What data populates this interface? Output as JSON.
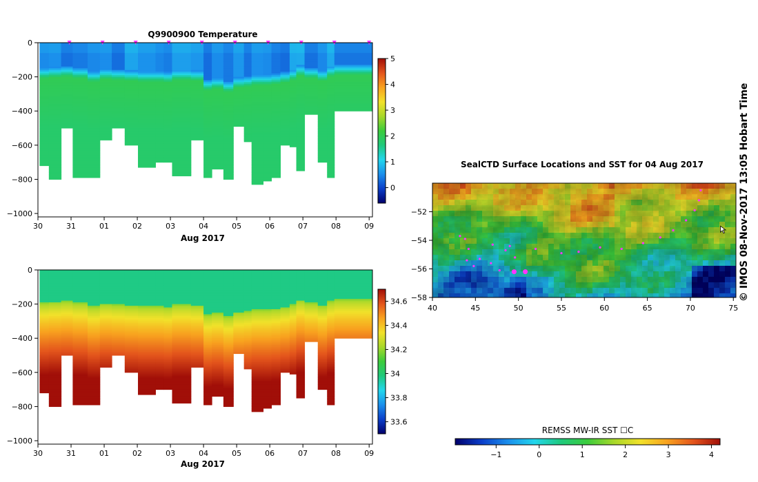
{
  "figure": {
    "side_label": "© IMOS 08-Nov-2017 13:05 Hobart Time"
  },
  "chart_data": [
    {
      "type": "heatmap",
      "title": "Q9900900  Temperature",
      "xlabel": "Aug 2017",
      "ylabel": "",
      "x_tick_labels": [
        "30",
        "31",
        "01",
        "02",
        "03",
        "04",
        "05",
        "06",
        "07",
        "08",
        "09"
      ],
      "x_range_days": [
        30.0,
        40.1
      ],
      "ylim": [
        -1020,
        0
      ],
      "y_ticks": [
        0,
        -200,
        -400,
        -600,
        -800,
        -1000
      ],
      "y_tick_labels": [
        "0",
        "−200",
        "−400",
        "−600",
        "−800",
        "−1000"
      ],
      "colorbar": {
        "range": [
          -0.6,
          5
        ],
        "ticks": [
          0,
          1,
          2,
          3,
          4,
          5
        ],
        "tick_labels": [
          "0",
          "1",
          "2",
          "3",
          "4",
          "5"
        ],
        "colors": [
          "#00006b",
          "#0b3ec9",
          "#1b8fec",
          "#22d6ec",
          "#1fc97c",
          "#3ccc3c",
          "#a8d82a",
          "#f2e12a",
          "#f8a21f",
          "#e3541c",
          "#a10f08"
        ]
      },
      "profile_markers_day": [
        30.95,
        31.95,
        32.95,
        33.95,
        34.95,
        35.95,
        36.95,
        37.95,
        38.95,
        40.0
      ],
      "profile_days": [
        30.05,
        30.33,
        30.7,
        31.05,
        31.5,
        31.87,
        32.23,
        32.62,
        33.02,
        33.55,
        33.8,
        34.05,
        34.62,
        35.0,
        35.25,
        35.6,
        35.9,
        36.22,
        36.45,
        36.8,
        37.05,
        37.32,
        37.6,
        37.8,
        38.05,
        38.45,
        38.73,
        38.95
      ],
      "profile_depths_m": [
        720,
        800,
        500,
        785,
        785,
        570,
        500,
        600,
        725,
        700,
        700,
        780,
        565,
        785,
        735,
        800,
        490,
        575,
        825,
        810,
        785,
        600,
        610,
        750,
        420,
        700,
        785,
        400
      ],
      "mixed_layer_depth_m": [
        190,
        185,
        180,
        190,
        210,
        195,
        200,
        205,
        210,
        210,
        215,
        200,
        205,
        260,
        250,
        270,
        245,
        240,
        230,
        230,
        225,
        215,
        200,
        175,
        190,
        205,
        180,
        170
      ],
      "layers_mid_depth_m": [
        -100,
        -250,
        -500,
        -700
      ],
      "layers_value": [
        0.5,
        2.0,
        1.9,
        1.9
      ]
    },
    {
      "type": "heatmap",
      "title": "",
      "xlabel": "Aug 2017",
      "ylabel": "",
      "x_tick_labels": [
        "30",
        "31",
        "01",
        "02",
        "03",
        "04",
        "05",
        "06",
        "07",
        "08",
        "09"
      ],
      "x_range_days": [
        30.0,
        40.1
      ],
      "ylim": [
        -1020,
        0
      ],
      "y_ticks": [
        0,
        -200,
        -400,
        -600,
        -800,
        -1000
      ],
      "y_tick_labels": [
        "0",
        "−200",
        "−400",
        "−600",
        "−800",
        "−1000"
      ],
      "colorbar": {
        "range": [
          33.5,
          34.7
        ],
        "ticks": [
          33.6,
          33.8,
          34,
          34.2,
          34.4,
          34.6
        ],
        "tick_labels": [
          "33.6",
          "33.8",
          "34",
          "34.2",
          "34.4",
          "34.6"
        ],
        "colors": [
          "#00006b",
          "#0b3ec9",
          "#1b8fec",
          "#22d6ec",
          "#1fc97c",
          "#3ccc3c",
          "#a8d82a",
          "#f2e12a",
          "#f8a21f",
          "#e3541c",
          "#a10f08"
        ]
      },
      "profile_days": [
        30.05,
        30.33,
        30.7,
        31.05,
        31.5,
        31.87,
        32.23,
        32.62,
        33.02,
        33.55,
        33.8,
        34.05,
        34.62,
        35.0,
        35.25,
        35.6,
        35.9,
        36.22,
        36.45,
        36.8,
        37.05,
        37.32,
        37.6,
        37.8,
        38.05,
        38.45,
        38.73,
        38.95
      ],
      "profile_depths_m": [
        720,
        800,
        500,
        785,
        785,
        570,
        500,
        600,
        725,
        700,
        700,
        780,
        565,
        785,
        735,
        800,
        490,
        575,
        825,
        810,
        785,
        600,
        610,
        750,
        420,
        700,
        785,
        400
      ],
      "surface_value": 33.97,
      "deep_value": 34.7
    },
    {
      "type": "heatmap",
      "title": "SealCTD Surface Locations and SST for 04 Aug 2017",
      "xlabel": "",
      "ylabel": "",
      "x_ticks": [
        40,
        45,
        50,
        55,
        60,
        65,
        70,
        75
      ],
      "x_tick_labels": [
        "40",
        "45",
        "50",
        "55",
        "60",
        "65",
        "70",
        "75"
      ],
      "xlim": [
        40,
        75.3
      ],
      "y_ticks": [
        -52,
        -54,
        -56,
        -58
      ],
      "y_tick_labels": [
        "−52",
        "−54",
        "−56",
        "−58"
      ],
      "ylim": [
        -58,
        -50.0
      ],
      "track_color": "#ff33ff",
      "track_points": [
        [
          43.2,
          -53.7
        ],
        [
          43.8,
          -53.9
        ],
        [
          44.2,
          -54.6
        ],
        [
          44.0,
          -55.4
        ],
        [
          44.8,
          -55.8
        ],
        [
          45.5,
          -55.3
        ],
        [
          46.8,
          -55.6
        ],
        [
          47.8,
          -56.1
        ],
        [
          49.5,
          -56.2
        ],
        [
          50.8,
          -56.2
        ],
        [
          49.6,
          -55.2
        ],
        [
          48.5,
          -54.7
        ],
        [
          47.0,
          -54.3
        ],
        [
          49.0,
          -54.4
        ],
        [
          52.0,
          -54.6
        ],
        [
          55.0,
          -54.9
        ],
        [
          57.0,
          -54.8
        ],
        [
          59.5,
          -54.5
        ],
        [
          62.0,
          -54.6
        ],
        [
          64.5,
          -54.2
        ],
        [
          66.5,
          -53.8
        ],
        [
          68.0,
          -53.3
        ],
        [
          69.5,
          -52.6
        ],
        [
          70.5,
          -51.9
        ],
        [
          71.0,
          -51.2
        ],
        [
          71.2,
          -50.5
        ]
      ],
      "cursor_location": [
        73.5,
        -53.0
      ],
      "colorbar": {
        "label": "REMSS MW-IR SST ☐C",
        "range": [
          -1.95,
          4.2
        ],
        "ticks": [
          -1,
          0,
          1,
          2,
          3,
          4
        ],
        "tick_labels": [
          "−1",
          "0",
          "1",
          "2",
          "3",
          "4"
        ],
        "colors": [
          "#00006b",
          "#0b3ec9",
          "#1b8fec",
          "#22d6ec",
          "#1fc97c",
          "#3ccc3c",
          "#a8d82a",
          "#f2e12a",
          "#f8a21f",
          "#e3541c",
          "#a10f08"
        ]
      }
    }
  ]
}
